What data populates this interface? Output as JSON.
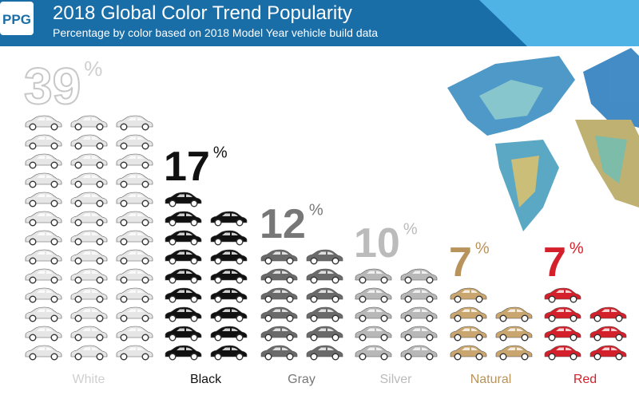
{
  "logo": "PPG",
  "chart_data": {
    "type": "pictogram",
    "title": "2018 Global Color Trend Popularity",
    "subtitle": "Percentage by color based on 2018 Model Year vehicle build data",
    "categories": [
      "White",
      "Black",
      "Gray",
      "Silver",
      "Natural",
      "Red"
    ],
    "values": [
      39,
      17,
      12,
      10,
      7,
      7
    ],
    "value_suffix": "%",
    "colors": [
      "#e6e6e6",
      "#111111",
      "#6a6a6a",
      "#b8b8b8",
      "#c9a56f",
      "#d3202b"
    ],
    "label_colors": [
      "#cfcfcf",
      "#111111",
      "#777777",
      "#bbbbbb",
      "#b8935c",
      "#d3202b"
    ]
  }
}
